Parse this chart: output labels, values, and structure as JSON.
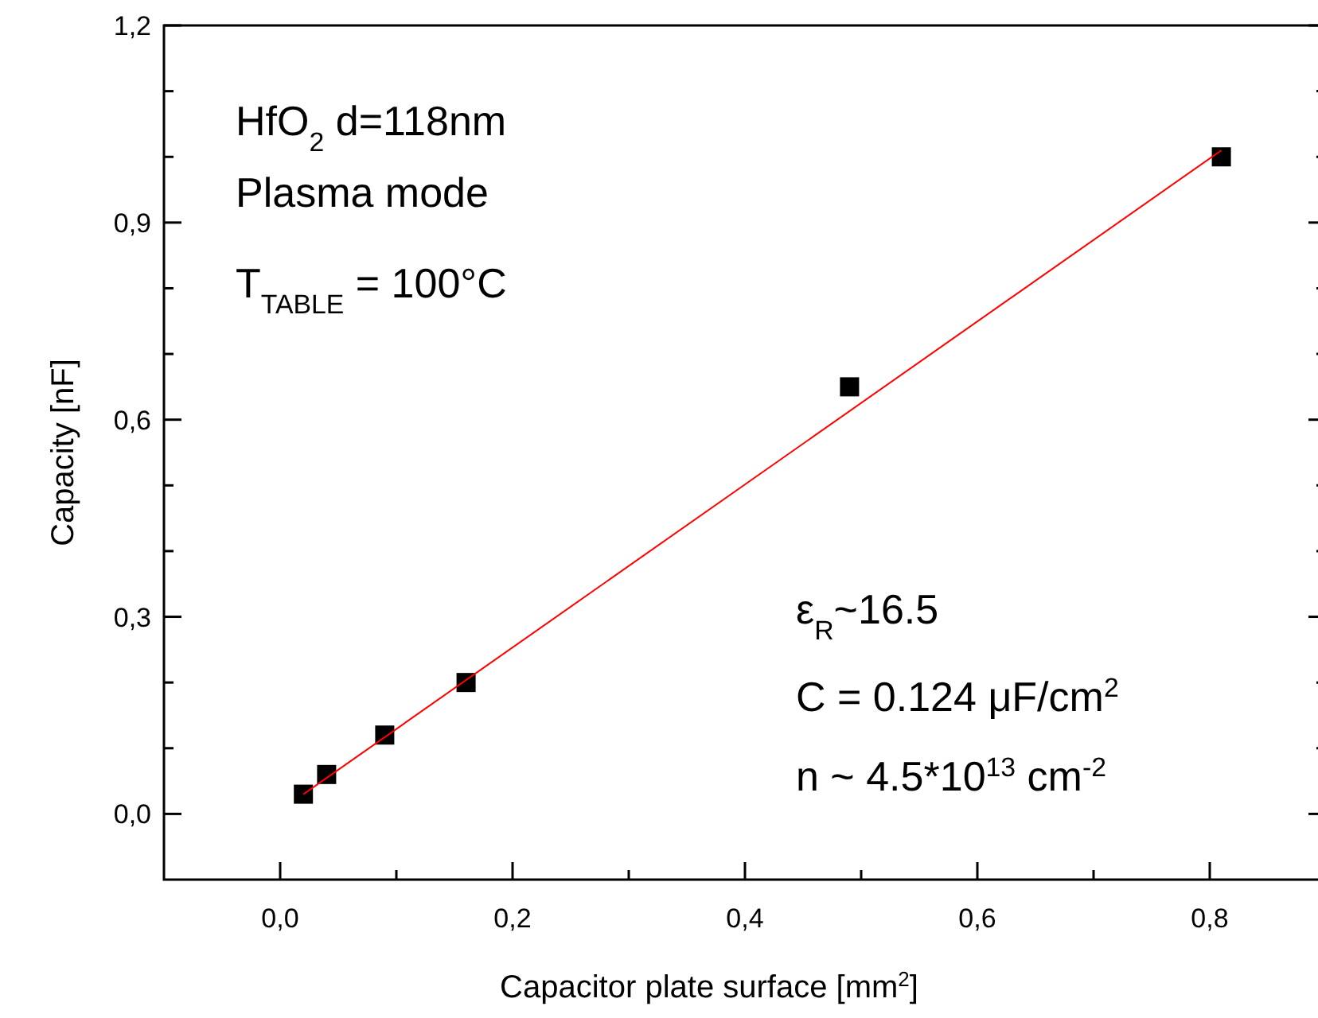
{
  "chart_data": {
    "type": "scatter",
    "xlabel": "Capacitor plate surface [mm$^{2}$]",
    "ylabel": "Capacity [nF]",
    "xlim": [
      -0.1,
      0.9
    ],
    "ylim": [
      -0.1,
      1.2
    ],
    "xticks": [
      {
        "value": 0,
        "label": "0,0"
      },
      {
        "value": 0.1,
        "label": null
      },
      {
        "value": 0.2,
        "label": "0,2"
      },
      {
        "value": 0.3,
        "label": null
      },
      {
        "value": 0.4,
        "label": "0,4"
      },
      {
        "value": 0.5,
        "label": null
      },
      {
        "value": 0.6,
        "label": "0,6"
      },
      {
        "value": 0.7,
        "label": null
      },
      {
        "value": 0.8,
        "label": "0,8"
      }
    ],
    "yticks": [
      {
        "value": 0,
        "label": "0,0"
      },
      {
        "value": 0.1,
        "label": null
      },
      {
        "value": 0.2,
        "label": null
      },
      {
        "value": 0.3,
        "label": "0,3"
      },
      {
        "value": 0.4,
        "label": null
      },
      {
        "value": 0.5,
        "label": null
      },
      {
        "value": 0.6,
        "label": "0,6"
      },
      {
        "value": 0.7,
        "label": null
      },
      {
        "value": 0.8,
        "label": null
      },
      {
        "value": 0.9,
        "label": "0,9"
      },
      {
        "value": 1.0,
        "label": null
      },
      {
        "value": 1.1,
        "label": null
      },
      {
        "value": 1.2,
        "label": "1,2"
      }
    ],
    "grid": false,
    "series": [
      {
        "marker": "square",
        "color": "#000000",
        "x": [
          0.02,
          0.04,
          0.09,
          0.16,
          0.49,
          0.81
        ],
        "values": [
          0.03,
          0.06,
          0.12,
          0.2,
          0.65,
          1.0
        ]
      },
      {
        "type": "line",
        "marker": "none",
        "line_style": "solid",
        "color": "#ff0000",
        "x": [
          0.02,
          0.81
        ],
        "values": [
          0.03,
          1.01
        ]
      }
    ],
    "annotations": [
      "HfO$_{2}$ d=118nm",
      "Plasma mode",
      "T$_{TABLE}$ = 100°C",
      "ε$_{R}$~16.5",
      "C = 0.124 μF/cm$^{2}$",
      "n ~ 4.5*10$^{13}$ cm$^{-2}$"
    ]
  }
}
